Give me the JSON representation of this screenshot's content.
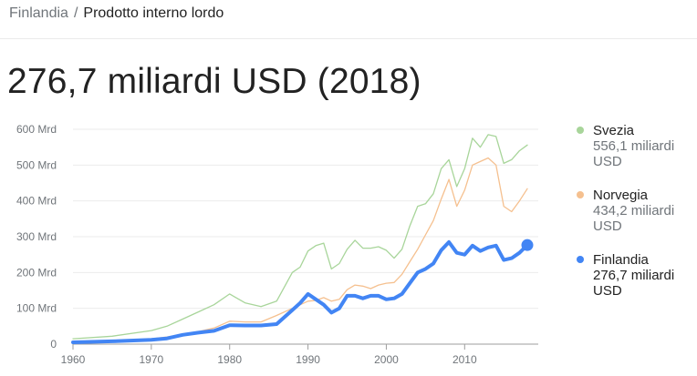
{
  "breadcrumb": {
    "country": "Finlandia",
    "separator": "/",
    "indicator": "Prodotto interno lordo"
  },
  "headline": "276,7 miliardi USD (2018)",
  "legend": [
    {
      "name": "Svezia",
      "value": "556,1 miliardi USD",
      "color": "#a8d59a"
    },
    {
      "name": "Norvegia",
      "value": "434,2 miliardi USD",
      "color": "#f5c08f"
    },
    {
      "name": "Finlandia",
      "value": "276,7 miliardi USD",
      "color": "#4285f4"
    }
  ],
  "chart_data": {
    "type": "line",
    "ylim": [
      0,
      600
    ],
    "xlim": [
      1960,
      2018
    ],
    "yticks": [
      {
        "value": 0,
        "label": "0"
      },
      {
        "value": 100,
        "label": "100 Mrd"
      },
      {
        "value": 200,
        "label": "200 Mrd"
      },
      {
        "value": 300,
        "label": "300 Mrd"
      },
      {
        "value": 400,
        "label": "400 Mrd"
      },
      {
        "value": 500,
        "label": "500 Mrd"
      },
      {
        "value": 600,
        "label": "600 Mrd"
      }
    ],
    "xticks": [
      1960,
      1970,
      1980,
      1990,
      2000,
      2010
    ],
    "grid": true,
    "legend_position": "right",
    "series": [
      {
        "name": "Svezia",
        "color": "#a8d59a",
        "x": [
          1960,
          1965,
          1970,
          1972,
          1974,
          1976,
          1978,
          1980,
          1982,
          1984,
          1986,
          1988,
          1989,
          1990,
          1991,
          1992,
          1993,
          1994,
          1995,
          1996,
          1997,
          1998,
          1999,
          2000,
          2001,
          2002,
          2003,
          2004,
          2005,
          2006,
          2007,
          2008,
          2009,
          2010,
          2011,
          2012,
          2013,
          2014,
          2015,
          2016,
          2017,
          2018
        ],
        "values": [
          15,
          22,
          38,
          50,
          70,
          90,
          110,
          140,
          115,
          105,
          120,
          200,
          215,
          260,
          275,
          282,
          210,
          225,
          265,
          290,
          268,
          268,
          272,
          262,
          240,
          265,
          330,
          385,
          392,
          420,
          490,
          515,
          440,
          490,
          575,
          550,
          585,
          580,
          505,
          515,
          540,
          556
        ]
      },
      {
        "name": "Norvegia",
        "color": "#f5c08f",
        "x": [
          1960,
          1965,
          1970,
          1972,
          1974,
          1976,
          1978,
          1980,
          1982,
          1984,
          1986,
          1988,
          1990,
          1991,
          1992,
          1993,
          1994,
          1995,
          1996,
          1997,
          1998,
          1999,
          2000,
          2001,
          2002,
          2003,
          2004,
          2005,
          2006,
          2007,
          2008,
          2009,
          2010,
          2011,
          2012,
          2013,
          2014,
          2015,
          2016,
          2017,
          2018
        ],
        "values": [
          6,
          9,
          15,
          20,
          27,
          35,
          45,
          64,
          62,
          62,
          80,
          100,
          120,
          122,
          130,
          120,
          125,
          152,
          165,
          162,
          155,
          165,
          170,
          172,
          195,
          230,
          265,
          305,
          345,
          405,
          460,
          385,
          430,
          500,
          510,
          520,
          500,
          385,
          370,
          400,
          434
        ]
      },
      {
        "name": "Finlandia",
        "color": "#4285f4",
        "x": [
          1960,
          1965,
          1970,
          1972,
          1974,
          1976,
          1978,
          1980,
          1982,
          1984,
          1986,
          1988,
          1989,
          1990,
          1991,
          1992,
          1993,
          1994,
          1995,
          1996,
          1997,
          1998,
          1999,
          2000,
          2001,
          2002,
          2003,
          2004,
          2005,
          2006,
          2007,
          2008,
          2009,
          2010,
          2011,
          2012,
          2013,
          2014,
          2015,
          2016,
          2017,
          2018
        ],
        "values": [
          5,
          8,
          12,
          16,
          26,
          32,
          37,
          53,
          52,
          52,
          56,
          95,
          115,
          140,
          125,
          110,
          88,
          100,
          135,
          135,
          128,
          135,
          135,
          125,
          128,
          140,
          170,
          200,
          210,
          225,
          262,
          285,
          255,
          250,
          275,
          260,
          270,
          275,
          235,
          240,
          255,
          276.7
        ]
      }
    ]
  }
}
